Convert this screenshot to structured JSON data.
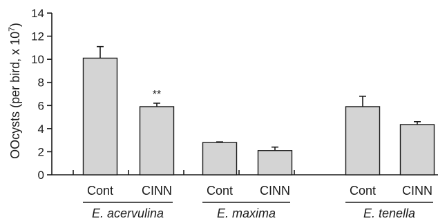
{
  "chart_data": {
    "type": "bar",
    "ylabel": "OOcysts (per bird, x 10",
    "ylabel_sup": "7",
    "ylabel_close": ")",
    "ylim": [
      0,
      14
    ],
    "yticks": [
      0,
      2,
      4,
      6,
      8,
      10,
      12,
      14
    ],
    "grid": false,
    "groups": [
      {
        "name": "E. acervulina",
        "bars": [
          {
            "label": "Cont",
            "value": 10.1,
            "error": 1.0,
            "annotation": ""
          },
          {
            "label": "CINN",
            "value": 5.9,
            "error": 0.3,
            "annotation": "**"
          }
        ]
      },
      {
        "name": "E. maxima",
        "bars": [
          {
            "label": "Cont",
            "value": 2.8,
            "error": 0.05,
            "annotation": ""
          },
          {
            "label": "CINN",
            "value": 2.1,
            "error": 0.3,
            "annotation": ""
          }
        ]
      },
      {
        "name": "E. tenella",
        "bars": [
          {
            "label": "Cont",
            "value": 5.9,
            "error": 0.9,
            "annotation": ""
          },
          {
            "label": "CINN",
            "value": 4.35,
            "error": 0.25,
            "annotation": ""
          }
        ]
      }
    ]
  }
}
